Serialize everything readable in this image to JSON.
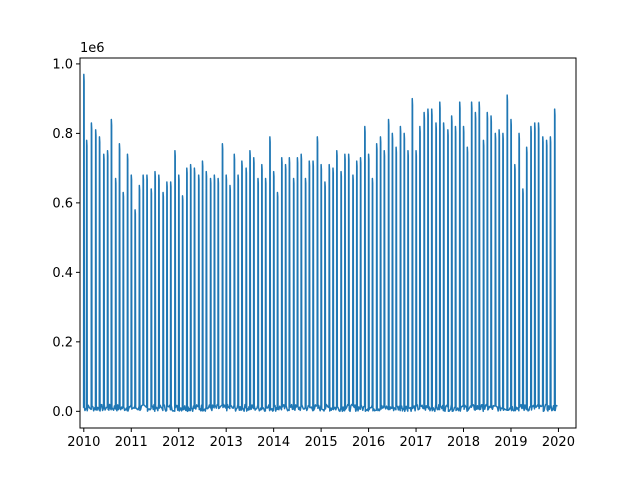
{
  "chart_data": {
    "type": "line",
    "title": "",
    "xlabel": "",
    "ylabel": "",
    "y_offset_label": "1e6",
    "xlim": [
      2009.92,
      2020.37
    ],
    "ylim": [
      -0.048,
      1.017
    ],
    "grid": false,
    "color": "#1f77b4",
    "x_ticks": [
      {
        "value": 2010,
        "label": "2010"
      },
      {
        "value": 2011,
        "label": "2011"
      },
      {
        "value": 2012,
        "label": "2012"
      },
      {
        "value": 2013,
        "label": "2013"
      },
      {
        "value": 2014,
        "label": "2014"
      },
      {
        "value": 2015,
        "label": "2015"
      },
      {
        "value": 2016,
        "label": "2016"
      },
      {
        "value": 2017,
        "label": "2017"
      },
      {
        "value": 2018,
        "label": "2018"
      },
      {
        "value": 2019,
        "label": "2019"
      },
      {
        "value": 2020,
        "label": "2020"
      }
    ],
    "y_ticks": [
      {
        "value": 0.0,
        "label": "0.0"
      },
      {
        "value": 0.2,
        "label": "0.2"
      },
      {
        "value": 0.4,
        "label": "0.4"
      },
      {
        "value": 0.6,
        "label": "0.6"
      },
      {
        "value": 0.8,
        "label": "0.8"
      },
      {
        "value": 1.0,
        "label": "1.0"
      }
    ],
    "series": [
      {
        "peaks": [
          [
            2010.0,
            0.97
          ],
          [
            2010.06,
            0.78
          ],
          [
            2010.16,
            0.83
          ],
          [
            2010.25,
            0.81
          ],
          [
            2010.33,
            0.79
          ],
          [
            2010.42,
            0.74
          ],
          [
            2010.5,
            0.75
          ],
          [
            2010.58,
            0.84
          ],
          [
            2010.67,
            0.67
          ],
          [
            2010.75,
            0.77
          ],
          [
            2010.83,
            0.63
          ],
          [
            2010.92,
            0.74
          ],
          [
            2011.0,
            0.68
          ],
          [
            2011.08,
            0.58
          ],
          [
            2011.17,
            0.65
          ],
          [
            2011.25,
            0.68
          ],
          [
            2011.33,
            0.68
          ],
          [
            2011.42,
            0.64
          ],
          [
            2011.5,
            0.69
          ],
          [
            2011.58,
            0.68
          ],
          [
            2011.67,
            0.63
          ],
          [
            2011.75,
            0.66
          ],
          [
            2011.83,
            0.66
          ],
          [
            2011.92,
            0.75
          ],
          [
            2012.0,
            0.68
          ],
          [
            2012.08,
            0.62
          ],
          [
            2012.17,
            0.7
          ],
          [
            2012.25,
            0.71
          ],
          [
            2012.33,
            0.7
          ],
          [
            2012.42,
            0.68
          ],
          [
            2012.5,
            0.72
          ],
          [
            2012.58,
            0.69
          ],
          [
            2012.67,
            0.67
          ],
          [
            2012.75,
            0.68
          ],
          [
            2012.83,
            0.67
          ],
          [
            2012.92,
            0.77
          ],
          [
            2013.0,
            0.68
          ],
          [
            2013.08,
            0.65
          ],
          [
            2013.17,
            0.74
          ],
          [
            2013.25,
            0.68
          ],
          [
            2013.33,
            0.72
          ],
          [
            2013.42,
            0.7
          ],
          [
            2013.5,
            0.75
          ],
          [
            2013.58,
            0.73
          ],
          [
            2013.67,
            0.67
          ],
          [
            2013.75,
            0.71
          ],
          [
            2013.83,
            0.67
          ],
          [
            2013.92,
            0.79
          ],
          [
            2014.0,
            0.69
          ],
          [
            2014.08,
            0.63
          ],
          [
            2014.17,
            0.73
          ],
          [
            2014.25,
            0.71
          ],
          [
            2014.33,
            0.73
          ],
          [
            2014.42,
            0.67
          ],
          [
            2014.5,
            0.73
          ],
          [
            2014.58,
            0.74
          ],
          [
            2014.67,
            0.67
          ],
          [
            2014.75,
            0.72
          ],
          [
            2014.83,
            0.72
          ],
          [
            2014.92,
            0.79
          ],
          [
            2015.0,
            0.71
          ],
          [
            2015.08,
            0.66
          ],
          [
            2015.17,
            0.71
          ],
          [
            2015.25,
            0.7
          ],
          [
            2015.33,
            0.75
          ],
          [
            2015.42,
            0.69
          ],
          [
            2015.5,
            0.74
          ],
          [
            2015.58,
            0.74
          ],
          [
            2015.67,
            0.68
          ],
          [
            2015.75,
            0.72
          ],
          [
            2015.83,
            0.73
          ],
          [
            2015.92,
            0.82
          ],
          [
            2016.0,
            0.74
          ],
          [
            2016.08,
            0.67
          ],
          [
            2016.17,
            0.77
          ],
          [
            2016.25,
            0.79
          ],
          [
            2016.33,
            0.75
          ],
          [
            2016.42,
            0.84
          ],
          [
            2016.5,
            0.8
          ],
          [
            2016.58,
            0.76
          ],
          [
            2016.67,
            0.82
          ],
          [
            2016.75,
            0.8
          ],
          [
            2016.83,
            0.75
          ],
          [
            2016.92,
            0.9
          ],
          [
            2017.0,
            0.75
          ],
          [
            2017.08,
            0.82
          ],
          [
            2017.17,
            0.86
          ],
          [
            2017.25,
            0.87
          ],
          [
            2017.33,
            0.87
          ],
          [
            2017.42,
            0.83
          ],
          [
            2017.5,
            0.89
          ],
          [
            2017.58,
            0.83
          ],
          [
            2017.67,
            0.81
          ],
          [
            2017.75,
            0.85
          ],
          [
            2017.83,
            0.82
          ],
          [
            2017.92,
            0.89
          ],
          [
            2018.0,
            0.82
          ],
          [
            2018.08,
            0.76
          ],
          [
            2018.17,
            0.89
          ],
          [
            2018.25,
            0.86
          ],
          [
            2018.33,
            0.89
          ],
          [
            2018.42,
            0.78
          ],
          [
            2018.5,
            0.86
          ],
          [
            2018.58,
            0.85
          ],
          [
            2018.67,
            0.8
          ],
          [
            2018.75,
            0.81
          ],
          [
            2018.83,
            0.8
          ],
          [
            2018.92,
            0.91
          ],
          [
            2019.0,
            0.84
          ],
          [
            2019.08,
            0.71
          ],
          [
            2019.17,
            0.8
          ],
          [
            2019.25,
            0.64
          ],
          [
            2019.33,
            0.76
          ],
          [
            2019.42,
            0.82
          ],
          [
            2019.5,
            0.83
          ],
          [
            2019.58,
            0.83
          ],
          [
            2019.67,
            0.79
          ],
          [
            2019.75,
            0.78
          ],
          [
            2019.83,
            0.79
          ],
          [
            2019.92,
            0.87
          ]
        ],
        "baseline_range": [
          0.0,
          0.02
        ]
      }
    ]
  }
}
